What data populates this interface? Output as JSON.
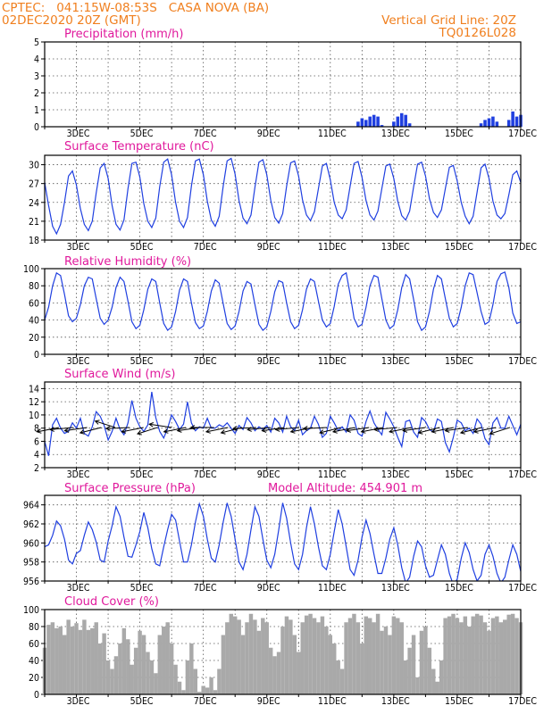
{
  "header": {
    "line1_left": "CPTEC:   041:15W-08:53S   CASA NOVA (BA)",
    "line2_left": "02DEC2020 20Z (GMT)",
    "line1_right": "Vertical Grid Line: 20Z",
    "line2_right": "TQ0126L028"
  },
  "x_axis": {
    "tick_labels": [
      "3DEC",
      "5DEC",
      "7DEC",
      "9DEC",
      "11DEC",
      "13DEC",
      "15DEC",
      "17DEC"
    ],
    "start": "02DEC 20Z",
    "end": "17DEC 20Z",
    "step_hours": 3,
    "vertical_grid_hour": "20Z"
  },
  "colors": {
    "header": "#f07f1e",
    "panel_title": "#e0199c",
    "series": "#1f3fe0",
    "cloud": "#a9a9a9"
  },
  "panels": [
    {
      "title": "Precipitation (mm/h)",
      "type": "bar",
      "ylim": [
        0,
        5
      ],
      "yticks": [
        "0",
        "1",
        "2",
        "3",
        "4",
        "5"
      ],
      "values": [
        0,
        0,
        0,
        0,
        0,
        0,
        0,
        0,
        0,
        0,
        0,
        0,
        0,
        0,
        0,
        0,
        0,
        0,
        0,
        0,
        0,
        0,
        0,
        0,
        0,
        0,
        0,
        0,
        0,
        0,
        0,
        0,
        0,
        0,
        0,
        0,
        0,
        0,
        0,
        0,
        0,
        0,
        0,
        0,
        0,
        0,
        0,
        0,
        0,
        0,
        0,
        0,
        0,
        0,
        0,
        0,
        0,
        0,
        0,
        0,
        0,
        0,
        0,
        0,
        0,
        0,
        0,
        0,
        0,
        0,
        0,
        0,
        0,
        0,
        0,
        0,
        0,
        0,
        0,
        0.3,
        0.5,
        0.4,
        0.6,
        0.7,
        0.6,
        0.1,
        0,
        0,
        0.3,
        0.6,
        0.8,
        0.7,
        0.2,
        0,
        0,
        0,
        0,
        0,
        0,
        0,
        0,
        0,
        0,
        0,
        0,
        0,
        0,
        0,
        0,
        0,
        0.2,
        0.4,
        0.5,
        0.6,
        0.3,
        0,
        0,
        0.4,
        0.9,
        0.6,
        0.7,
        0.5,
        0.2,
        0,
        0,
        0,
        0,
        0,
        0,
        0,
        0,
        0,
        0,
        0,
        0,
        0,
        0,
        0,
        0,
        0,
        0,
        0,
        0,
        0,
        0,
        0
      ]
    },
    {
      "title": "Surface Temperature (nC)",
      "type": "line",
      "ylim": [
        18,
        31.5
      ],
      "yticks": [
        "18",
        "21",
        "24",
        "27",
        "30"
      ],
      "values": [
        27.2,
        23.5,
        20.2,
        19.0,
        20.5,
        24.0,
        28.2,
        29.0,
        26.8,
        23.0,
        20.5,
        19.5,
        21.0,
        25.5,
        29.5,
        30.2,
        27.8,
        23.5,
        20.5,
        19.6,
        21.2,
        26.2,
        30.2,
        30.4,
        28.0,
        23.8,
        21.0,
        20.0,
        21.5,
        26.5,
        30.4,
        30.9,
        28.4,
        24.0,
        21.0,
        20.0,
        21.6,
        26.6,
        30.6,
        30.9,
        28.4,
        24.2,
        21.2,
        20.2,
        21.8,
        26.6,
        30.6,
        31.0,
        28.5,
        24.3,
        21.5,
        20.6,
        22.0,
        26.4,
        30.4,
        30.8,
        28.4,
        24.3,
        21.6,
        20.7,
        22.2,
        26.6,
        30.3,
        30.6,
        28.2,
        24.4,
        22.0,
        21.1,
        22.5,
        26.2,
        29.8,
        30.2,
        27.6,
        24.0,
        22.0,
        21.4,
        22.8,
        26.6,
        30.2,
        30.5,
        28.0,
        24.3,
        22.0,
        21.2,
        22.6,
        26.2,
        29.8,
        30.1,
        27.8,
        24.2,
        21.9,
        21.2,
        22.6,
        26.5,
        30.1,
        30.4,
        28.2,
        24.6,
        22.4,
        21.6,
        22.8,
        26.2,
        29.6,
        29.9,
        27.4,
        24.0,
        21.8,
        20.6,
        21.8,
        25.6,
        29.5,
        30.1,
        27.8,
        24.2,
        22.0,
        21.4,
        22.2,
        25.2,
        28.4,
        29.0,
        27.2,
        24.0,
        21.8,
        20.6,
        21.5,
        25.6,
        29.6,
        30.4,
        28.2,
        24.6,
        22.4,
        21.4,
        22.6,
        26.6,
        30.6,
        31.0,
        28.5
      ]
    },
    {
      "title": "Relative Humidity (%)",
      "type": "line",
      "ylim": [
        0,
        100
      ],
      "yticks": [
        "0",
        "20",
        "40",
        "60",
        "80",
        "100"
      ],
      "values": [
        40,
        55,
        80,
        95,
        92,
        70,
        45,
        38,
        42,
        58,
        80,
        90,
        88,
        65,
        42,
        35,
        40,
        55,
        78,
        90,
        85,
        62,
        38,
        30,
        34,
        52,
        76,
        88,
        85,
        60,
        36,
        28,
        32,
        50,
        75,
        88,
        85,
        60,
        37,
        30,
        33,
        50,
        74,
        87,
        83,
        59,
        36,
        29,
        33,
        50,
        74,
        85,
        82,
        58,
        35,
        28,
        32,
        50,
        73,
        86,
        84,
        60,
        38,
        30,
        34,
        52,
        76,
        88,
        85,
        62,
        40,
        32,
        36,
        56,
        82,
        92,
        95,
        70,
        42,
        32,
        35,
        55,
        80,
        92,
        90,
        65,
        40,
        30,
        34,
        52,
        78,
        93,
        88,
        64,
        38,
        28,
        32,
        50,
        76,
        92,
        88,
        65,
        42,
        32,
        36,
        55,
        80,
        95,
        93,
        72,
        50,
        35,
        38,
        58,
        85,
        94,
        96,
        78,
        48,
        36,
        38,
        55,
        78,
        88,
        84,
        60,
        40,
        33,
        36,
        52,
        74,
        86,
        80,
        56,
        40
      ]
    },
    {
      "title": "Surface Wind (m/s)",
      "type": "line",
      "ylim": [
        2,
        15
      ],
      "yticks": [
        "2",
        "4",
        "6",
        "8",
        "10",
        "12",
        "14"
      ],
      "values": [
        6.0,
        3.8,
        8.5,
        9.5,
        8.0,
        7.2,
        7.5,
        8.8,
        8.0,
        9.5,
        7.2,
        6.8,
        8.2,
        10.5,
        9.8,
        8.4,
        6.2,
        7.5,
        9.5,
        7.8,
        7.0,
        8.8,
        12.2,
        9.5,
        8.2,
        7.5,
        8.5,
        13.5,
        9.6,
        7.5,
        6.5,
        8.0,
        10.0,
        9.0,
        7.8,
        8.6,
        12.0,
        8.8,
        7.6,
        8.2,
        8.0,
        9.5,
        8.0,
        8.0,
        8.5,
        8.2,
        8.8,
        8.0,
        7.2,
        8.4,
        7.8,
        9.6,
        8.8,
        7.6,
        8.2,
        7.8,
        8.4,
        7.4,
        9.5,
        8.8,
        7.4,
        9.8,
        8.2,
        7.6,
        9.2,
        7.0,
        7.6,
        8.0,
        9.8,
        8.6,
        6.6,
        7.2,
        9.8,
        8.8,
        7.6,
        8.2,
        7.4,
        10.0,
        9.2,
        7.2,
        6.8,
        9.0,
        10.6,
        8.8,
        7.8,
        7.0,
        10.4,
        9.4,
        8.2,
        6.6,
        5.2,
        9.0,
        9.2,
        7.4,
        6.6,
        9.6,
        9.0,
        7.8,
        7.4,
        9.4,
        9.0,
        5.8,
        4.4,
        6.6,
        9.2,
        8.8,
        7.6,
        8.0,
        7.2,
        9.4,
        8.6,
        6.4,
        5.5,
        8.8,
        9.6,
        8.0,
        8.0,
        9.8,
        8.4,
        7.0,
        8.6,
        11.0,
        8.6,
        7.4,
        8.4,
        10.2,
        8.4,
        7.6,
        8.4,
        11.6,
        9.4,
        8.2,
        7.2,
        10.4,
        9.8,
        8.2,
        6.0
      ],
      "arrows_dir": [
        250,
        260,
        255,
        245,
        300,
        265,
        250,
        240,
        285,
        250,
        255,
        270,
        250,
        245,
        265,
        260,
        255,
        260,
        250,
        265,
        245,
        250,
        255,
        250,
        260,
        250,
        255,
        245,
        250,
        255,
        245,
        250,
        240
      ]
    },
    {
      "title": "Surface Pressure (hPa)",
      "subtitle": "Model Altitude: 454.901 m",
      "type": "line",
      "ylim": [
        956,
        965
      ],
      "yticks": [
        "956",
        "958",
        "960",
        "962",
        "964"
      ],
      "values": [
        959.6,
        959.8,
        960.8,
        962.3,
        961.8,
        960.4,
        958.2,
        957.8,
        958.9,
        959.2,
        960.8,
        962.2,
        961.4,
        960.1,
        958.2,
        958.0,
        960.2,
        961.8,
        963.8,
        962.8,
        960.6,
        958.6,
        958.5,
        959.8,
        961.2,
        963.2,
        961.6,
        959.4,
        957.8,
        957.6,
        959.6,
        961.4,
        963.0,
        962.4,
        960.2,
        958.0,
        958.0,
        959.8,
        962.2,
        964.1,
        962.8,
        960.4,
        958.4,
        958.0,
        959.8,
        962.2,
        964.2,
        962.8,
        960.4,
        958.0,
        957.2,
        958.8,
        961.4,
        963.8,
        962.8,
        960.4,
        958.2,
        957.4,
        958.8,
        961.4,
        964.2,
        962.6,
        960.0,
        957.8,
        957.2,
        958.8,
        961.6,
        963.8,
        962.0,
        959.6,
        957.6,
        957.2,
        958.8,
        961.2,
        963.5,
        962.0,
        959.6,
        957.2,
        956.6,
        958.2,
        960.6,
        962.4,
        961.0,
        958.8,
        956.8,
        956.8,
        958.4,
        960.4,
        961.6,
        959.8,
        957.4,
        955.8,
        956.4,
        958.6,
        960.2,
        959.6,
        957.6,
        956.4,
        956.6,
        958.2,
        959.8,
        958.8,
        956.8,
        955.6,
        956.2,
        958.4,
        960.0,
        959.0,
        957.2,
        956.0,
        956.6,
        958.8,
        959.8,
        958.6,
        956.8,
        955.8,
        956.4,
        958.2,
        959.8,
        958.8,
        957.0,
        955.8,
        956.2,
        958.2,
        960.2,
        959.0,
        957.0,
        955.8,
        956.4,
        958.2,
        960.2,
        959.0,
        957.2,
        955.5,
        956.2
      ]
    },
    {
      "title": "Cloud Cover (%)",
      "type": "area",
      "ylim": [
        0,
        100
      ],
      "yticks": [
        "0",
        "20",
        "40",
        "60",
        "80",
        "100"
      ],
      "values": [
        55,
        82,
        85,
        78,
        80,
        70,
        88,
        80,
        84,
        76,
        88,
        76,
        78,
        85,
        60,
        72,
        40,
        30,
        45,
        60,
        78,
        65,
        35,
        55,
        75,
        70,
        50,
        40,
        25,
        70,
        80,
        85,
        60,
        35,
        15,
        5,
        40,
        60,
        30,
        3,
        10,
        8,
        20,
        5,
        30,
        70,
        85,
        95,
        92,
        88,
        70,
        85,
        95,
        88,
        75,
        90,
        85,
        55,
        45,
        50,
        80,
        92,
        88,
        70,
        50,
        85,
        93,
        95,
        90,
        85,
        92,
        80,
        70,
        60,
        40,
        30,
        85,
        90,
        95,
        85,
        60,
        92,
        90,
        85,
        95,
        75,
        80,
        70,
        92,
        90,
        85,
        40,
        55,
        70,
        20,
        75,
        80,
        55,
        30,
        15,
        40,
        90,
        92,
        95,
        90,
        85,
        92,
        80,
        92,
        95,
        93,
        85,
        75,
        90,
        92,
        85,
        88,
        94,
        95,
        90,
        85,
        70,
        80,
        85,
        92,
        90,
        85,
        95,
        78,
        70,
        65,
        90,
        85,
        75,
        92
      ]
    }
  ]
}
